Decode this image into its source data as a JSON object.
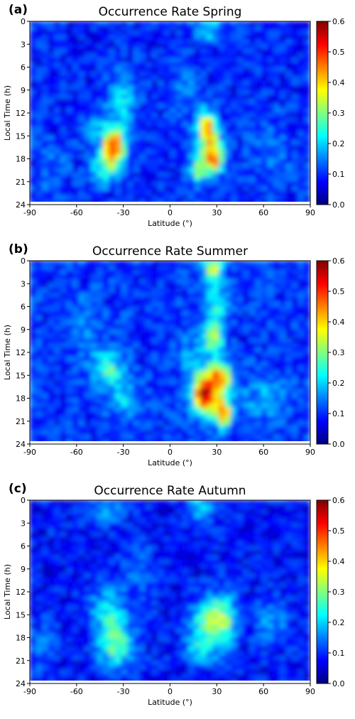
{
  "colormap": [
    "#00007f",
    "#0000ff",
    "#007fff",
    "#00ffff",
    "#7fff7f",
    "#ffff00",
    "#ff7f00",
    "#ff0000",
    "#7f0000"
  ],
  "chart_data": [
    {
      "type": "heatmap",
      "panel_label": "(a)",
      "title": "Occurrence Rate Spring",
      "xlabel": "Latitude (°)",
      "ylabel": "Local Time (h)",
      "xlim": [
        -90,
        90
      ],
      "ylim": [
        24,
        0
      ],
      "xticks": [
        "-90",
        "-60",
        "-30",
        "0",
        "30",
        "60",
        "90"
      ],
      "yticks": [
        "0",
        "3",
        "6",
        "9",
        "12",
        "15",
        "18",
        "21",
        "24"
      ],
      "colorbar": {
        "range": [
          0.0,
          0.6
        ],
        "ticks": [
          "0.6",
          "0.5",
          "0.4",
          "0.3",
          "0.2",
          "0.1",
          "0.0"
        ]
      },
      "base_value": 0.09,
      "hotspots": [
        {
          "lat": -36,
          "lt": 16.5,
          "value": 0.5,
          "spread_lat": 5,
          "spread_lt": 1.6
        },
        {
          "lat": -42,
          "lt": 19.5,
          "value": 0.24,
          "spread_lat": 6,
          "spread_lt": 1.5
        },
        {
          "lat": -45,
          "lt": 13.5,
          "value": 0.16,
          "spread_lat": 8,
          "spread_lt": 2
        },
        {
          "lat": 24,
          "lt": 14.0,
          "value": 0.38,
          "spread_lat": 4,
          "spread_lt": 1.5
        },
        {
          "lat": 28,
          "lt": 18.0,
          "value": 0.42,
          "spread_lat": 4,
          "spread_lt": 1.4
        },
        {
          "lat": 18,
          "lt": 19.5,
          "value": 0.3,
          "spread_lat": 4,
          "spread_lt": 1.3
        },
        {
          "lat": 25,
          "lt": 16.0,
          "value": 0.2,
          "spread_lat": 6,
          "spread_lt": 2
        },
        {
          "lat": 25,
          "lt": 1.0,
          "value": 0.22,
          "spread_lat": 6,
          "spread_lt": 1.2
        },
        {
          "lat": -30,
          "lt": 10.0,
          "value": 0.2,
          "spread_lat": 6,
          "spread_lt": 2.5
        },
        {
          "lat": 65,
          "lt": 17.0,
          "value": 0.14,
          "spread_lat": 10,
          "spread_lt": 3
        },
        {
          "lat": 10,
          "lt": 10.0,
          "value": 0.14,
          "spread_lat": 8,
          "spread_lt": 3
        },
        {
          "lat": -75,
          "lt": 19.0,
          "value": 0.13,
          "spread_lat": 8,
          "spread_lt": 3
        }
      ]
    },
    {
      "type": "heatmap",
      "panel_label": "(b)",
      "title": "Occurrence Rate Summer",
      "xlabel": "Latitude (°)",
      "ylabel": "Local Time (h)",
      "xlim": [
        -90,
        90
      ],
      "ylim": [
        24,
        0
      ],
      "xticks": [
        "-90",
        "-60",
        "-30",
        "0",
        "30",
        "60",
        "90"
      ],
      "yticks": [
        "0",
        "3",
        "6",
        "9",
        "12",
        "15",
        "18",
        "21",
        "24"
      ],
      "colorbar": {
        "range": [
          0.0,
          0.6
        ],
        "ticks": [
          "0.6",
          "0.5",
          "0.4",
          "0.3",
          "0.2",
          "0.1",
          "0.0"
        ]
      },
      "base_value": 0.1,
      "hotspots": [
        {
          "lat": 22,
          "lt": 17.5,
          "value": 0.55,
          "spread_lat": 5,
          "spread_lt": 1.8
        },
        {
          "lat": 32,
          "lt": 15.5,
          "value": 0.45,
          "spread_lat": 5,
          "spread_lt": 1.6
        },
        {
          "lat": 34,
          "lt": 20.0,
          "value": 0.45,
          "spread_lat": 4,
          "spread_lt": 1.3
        },
        {
          "lat": 28,
          "lt": 10.0,
          "value": 0.36,
          "spread_lat": 4,
          "spread_lt": 1.5
        },
        {
          "lat": 28,
          "lt": 1.0,
          "value": 0.36,
          "spread_lat": 4,
          "spread_lt": 1.2
        },
        {
          "lat": 30,
          "lt": 5.5,
          "value": 0.22,
          "spread_lat": 6,
          "spread_lt": 2
        },
        {
          "lat": -40,
          "lt": 14.0,
          "value": 0.26,
          "spread_lat": 7,
          "spread_lt": 1.5
        },
        {
          "lat": -30,
          "lt": 18.0,
          "value": 0.2,
          "spread_lat": 7,
          "spread_lt": 2
        },
        {
          "lat": 60,
          "lt": 18.0,
          "value": 0.18,
          "spread_lat": 10,
          "spread_lt": 2
        },
        {
          "lat": 15,
          "lt": 12.5,
          "value": 0.18,
          "spread_lat": 6,
          "spread_lt": 2
        },
        {
          "lat": -55,
          "lt": 9.0,
          "value": 0.15,
          "spread_lat": 8,
          "spread_lt": 3
        }
      ]
    },
    {
      "type": "heatmap",
      "panel_label": "(c)",
      "title": "Occurrence Rate Autumn",
      "xlabel": "Latitude (°)",
      "ylabel": "Local Time (h)",
      "xlim": [
        -90,
        90
      ],
      "ylim": [
        24,
        0
      ],
      "xticks": [
        "-90",
        "-60",
        "-30",
        "0",
        "30",
        "60",
        "90"
      ],
      "yticks": [
        "0",
        "3",
        "6",
        "9",
        "12",
        "15",
        "18",
        "21",
        "24"
      ],
      "colorbar": {
        "range": [
          0.0,
          0.6
        ],
        "ticks": [
          "0.6",
          "0.5",
          "0.4",
          "0.3",
          "0.2",
          "0.1",
          "0.0"
        ]
      },
      "base_value": 0.08,
      "hotspots": [
        {
          "lat": -35,
          "lt": 19.0,
          "value": 0.28,
          "spread_lat": 8,
          "spread_lt": 2
        },
        {
          "lat": -40,
          "lt": 14.5,
          "value": 0.22,
          "spread_lat": 8,
          "spread_lt": 2
        },
        {
          "lat": 25,
          "lt": 15.5,
          "value": 0.26,
          "spread_lat": 8,
          "spread_lt": 2
        },
        {
          "lat": 35,
          "lt": 16.0,
          "value": 0.24,
          "spread_lat": 6,
          "spread_lt": 2.5
        },
        {
          "lat": 20,
          "lt": 19.5,
          "value": 0.22,
          "spread_lat": 7,
          "spread_lt": 1.5
        },
        {
          "lat": 20,
          "lt": 1.0,
          "value": 0.2,
          "spread_lat": 6,
          "spread_lt": 1.2
        },
        {
          "lat": -40,
          "lt": 1.0,
          "value": 0.17,
          "spread_lat": 8,
          "spread_lt": 1.5
        },
        {
          "lat": 65,
          "lt": 16.0,
          "value": 0.16,
          "spread_lat": 8,
          "spread_lt": 2
        },
        {
          "lat": -20,
          "lt": 10.0,
          "value": 0.13,
          "spread_lat": 8,
          "spread_lt": 3
        },
        {
          "lat": -80,
          "lt": 19.0,
          "value": 0.13,
          "spread_lat": 6,
          "spread_lt": 3
        }
      ]
    }
  ]
}
